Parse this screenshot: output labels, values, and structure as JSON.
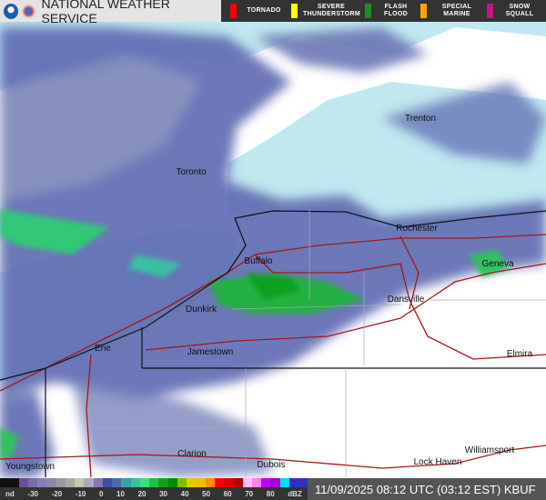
{
  "header": {
    "title": "NATIONAL WEATHER SERVICE",
    "warnings": [
      {
        "label": "TORNADO",
        "color": "#ff0000"
      },
      {
        "label": "SEVERE THUNDERSTORM",
        "color": "#ffff00"
      },
      {
        "label": "FLASH FLOOD",
        "color": "#228b22"
      },
      {
        "label": "SPECIAL MARINE",
        "color": "#ffa500"
      },
      {
        "label": "SNOW SQUALL",
        "color": "#c71585"
      }
    ]
  },
  "cities": [
    {
      "name": "Trenton"
    },
    {
      "name": "Toronto"
    },
    {
      "name": "Rochester"
    },
    {
      "name": "Buffalo"
    },
    {
      "name": "Geneva"
    },
    {
      "name": "Dunkirk"
    },
    {
      "name": "Dansville"
    },
    {
      "name": "Erie"
    },
    {
      "name": "Jamestown"
    },
    {
      "name": "Elmira"
    },
    {
      "name": "Clarion"
    },
    {
      "name": "Dubois"
    },
    {
      "name": "Williamsport"
    },
    {
      "name": "Lock Haven"
    },
    {
      "name": "Youngstown"
    }
  ],
  "legend": {
    "ticks": [
      "nd",
      "-30",
      "-20",
      "-10",
      "0",
      "10",
      "20",
      "30",
      "40",
      "50",
      "60",
      "70",
      "80",
      "dBZ"
    ],
    "colors": [
      "#111",
      "#111",
      "#6a4f9a",
      "#7a6aaa",
      "#8a7ab6",
      "#8888aa",
      "#999",
      "#aaa",
      "#c8c8a8",
      "#aab",
      "#8877aa",
      "#3a4fa0",
      "#4a6ab0",
      "#3aa0a0",
      "#3ac0a0",
      "#3ae080",
      "#20c040",
      "#10a020",
      "#008c00",
      "#80c000",
      "#e0d000",
      "#f0c000",
      "#ff9000",
      "#ff0000",
      "#e00000",
      "#b00000",
      "#ffc0ff",
      "#ff80ff",
      "#c000ff",
      "#a000e0",
      "#00e0f0",
      "#3030c0",
      "#3030c0"
    ]
  },
  "timestamp": "11/09/2025 08:12 UTC (03:12 EST) KBUF"
}
